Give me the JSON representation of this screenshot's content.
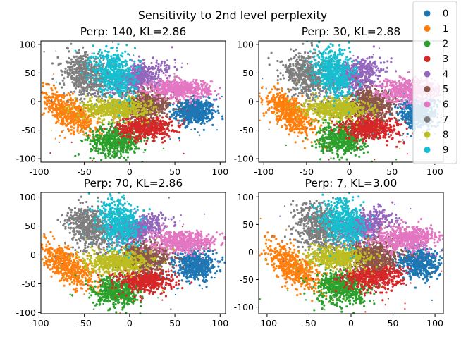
{
  "figure_title": "Sensitivity to 2nd level perplexity",
  "chart_data": [
    {
      "type": "scatter",
      "title": "Perp: 140, KL=2.86",
      "xlabel": "",
      "ylabel": "",
      "xticks": [
        -100,
        -50,
        0,
        50,
        100
      ],
      "yticks": [
        -100,
        -50,
        0,
        50,
        100
      ],
      "xlim": [
        -98,
        106
      ],
      "ylim": [
        -106,
        106
      ],
      "clusters": [
        {
          "label": "0",
          "cx": 72,
          "cy": -18,
          "sx": 11,
          "sy": 11,
          "angle": 0
        },
        {
          "label": "1",
          "cx": -67,
          "cy": -20,
          "sx": 23,
          "sy": 10,
          "angle": -52
        },
        {
          "label": "2",
          "cx": -15,
          "cy": -68,
          "sx": 14,
          "sy": 13,
          "angle": 0
        },
        {
          "label": "3",
          "cx": 17,
          "cy": -45,
          "sx": 15,
          "sy": 10,
          "angle": 0
        },
        {
          "label": "4",
          "cx": 9,
          "cy": 42,
          "sx": 17,
          "sy": 10,
          "angle": 35
        },
        {
          "label": "5",
          "cx": 18,
          "cy": -5,
          "sx": 15,
          "sy": 11,
          "angle": 0
        },
        {
          "label": "6",
          "cx": 55,
          "cy": 22,
          "sx": 17,
          "sy": 8,
          "angle": 0
        },
        {
          "label": "7",
          "cx": -48,
          "cy": 45,
          "sx": 12,
          "sy": 19,
          "angle": 15
        },
        {
          "label": "8",
          "cx": -15,
          "cy": -12,
          "sx": 18,
          "sy": 9,
          "angle": 0
        },
        {
          "label": "9",
          "cx": -17,
          "cy": 50,
          "sx": 11,
          "sy": 21,
          "angle": 10
        }
      ]
    },
    {
      "type": "scatter",
      "title": "Perp: 30, KL=2.88",
      "xlabel": "",
      "ylabel": "",
      "xticks": [
        -100,
        -50,
        0,
        50,
        100
      ],
      "yticks": [
        -100,
        -50,
        0,
        50,
        100
      ],
      "xlim": [
        -106,
        110
      ],
      "ylim": [
        -106,
        106
      ],
      "clusters": [
        {
          "label": "0",
          "cx": 80,
          "cy": -20,
          "sx": 11,
          "sy": 13,
          "angle": 0
        },
        {
          "label": "1",
          "cx": -68,
          "cy": -22,
          "sx": 22,
          "sy": 10,
          "angle": -55
        },
        {
          "label": "2",
          "cx": -9,
          "cy": -65,
          "sx": 13,
          "sy": 14,
          "angle": 0
        },
        {
          "label": "3",
          "cx": 25,
          "cy": -45,
          "sx": 16,
          "sy": 11,
          "angle": 0
        },
        {
          "label": "4",
          "cx": 7,
          "cy": 45,
          "sx": 17,
          "sy": 12,
          "angle": 35
        },
        {
          "label": "5",
          "cx": 25,
          "cy": -5,
          "sx": 15,
          "sy": 12,
          "angle": 0
        },
        {
          "label": "6",
          "cx": 70,
          "cy": 20,
          "sx": 18,
          "sy": 10,
          "angle": 0
        },
        {
          "label": "7",
          "cx": -48,
          "cy": 45,
          "sx": 13,
          "sy": 21,
          "angle": 15
        },
        {
          "label": "8",
          "cx": -15,
          "cy": -12,
          "sx": 18,
          "sy": 9,
          "angle": 0
        },
        {
          "label": "9",
          "cx": -18,
          "cy": 50,
          "sx": 11,
          "sy": 21,
          "angle": 10
        }
      ]
    },
    {
      "type": "scatter",
      "title": "Perp: 70, KL=2.86",
      "xlabel": "",
      "ylabel": "",
      "xticks": [
        -100,
        -50,
        0,
        50,
        100
      ],
      "yticks": [
        -100,
        -50,
        0,
        50,
        100
      ],
      "xlim": [
        -98,
        106
      ],
      "ylim": [
        -102,
        108
      ],
      "clusters": [
        {
          "label": "0",
          "cx": 72,
          "cy": -18,
          "sx": 11,
          "sy": 12,
          "angle": 0
        },
        {
          "label": "1",
          "cx": -67,
          "cy": -20,
          "sx": 23,
          "sy": 10,
          "angle": -52
        },
        {
          "label": "2",
          "cx": -15,
          "cy": -65,
          "sx": 13,
          "sy": 14,
          "angle": 0
        },
        {
          "label": "3",
          "cx": 18,
          "cy": -45,
          "sx": 15,
          "sy": 10,
          "angle": 0
        },
        {
          "label": "4",
          "cx": 8,
          "cy": 45,
          "sx": 17,
          "sy": 10,
          "angle": 35
        },
        {
          "label": "5",
          "cx": 18,
          "cy": -3,
          "sx": 15,
          "sy": 12,
          "angle": 0
        },
        {
          "label": "6",
          "cx": 58,
          "cy": 22,
          "sx": 17,
          "sy": 9,
          "angle": 0
        },
        {
          "label": "7",
          "cx": -45,
          "cy": 48,
          "sx": 12,
          "sy": 19,
          "angle": 15
        },
        {
          "label": "8",
          "cx": -12,
          "cy": -12,
          "sx": 18,
          "sy": 9,
          "angle": 0
        },
        {
          "label": "9",
          "cx": -12,
          "cy": 55,
          "sx": 11,
          "sy": 21,
          "angle": 10
        }
      ]
    },
    {
      "type": "scatter",
      "title": "Perp: 7, KL=3.00",
      "xlabel": "",
      "ylabel": "",
      "xticks": [
        -100,
        -50,
        0,
        50,
        100
      ],
      "yticks": [
        -100,
        -50,
        0,
        50,
        100
      ],
      "xlim": [
        -110,
        110
      ],
      "ylim": [
        -112,
        108
      ],
      "clusters": [
        {
          "label": "0",
          "cx": 80,
          "cy": -18,
          "sx": 12,
          "sy": 15,
          "angle": 0
        },
        {
          "label": "1",
          "cx": -70,
          "cy": -25,
          "sx": 24,
          "sy": 11,
          "angle": -55
        },
        {
          "label": "2",
          "cx": -10,
          "cy": -65,
          "sx": 16,
          "sy": 16,
          "angle": 0
        },
        {
          "label": "3",
          "cx": 25,
          "cy": -45,
          "sx": 17,
          "sy": 12,
          "angle": 0
        },
        {
          "label": "4",
          "cx": 15,
          "cy": 45,
          "sx": 18,
          "sy": 12,
          "angle": 35
        },
        {
          "label": "5",
          "cx": 25,
          "cy": -5,
          "sx": 16,
          "sy": 13,
          "angle": 0
        },
        {
          "label": "6",
          "cx": 65,
          "cy": 25,
          "sx": 18,
          "sy": 11,
          "angle": 0
        },
        {
          "label": "7",
          "cx": -40,
          "cy": 45,
          "sx": 14,
          "sy": 22,
          "angle": 15
        },
        {
          "label": "8",
          "cx": -15,
          "cy": -10,
          "sx": 18,
          "sy": 10,
          "angle": 0
        },
        {
          "label": "9",
          "cx": -10,
          "cy": 55,
          "sx": 12,
          "sy": 22,
          "angle": 10
        }
      ]
    }
  ],
  "legend": {
    "placement": "top-right",
    "entries": [
      {
        "label": "0",
        "color": "#1f77b4"
      },
      {
        "label": "1",
        "color": "#ff7f0e"
      },
      {
        "label": "2",
        "color": "#2ca02c"
      },
      {
        "label": "3",
        "color": "#d62728"
      },
      {
        "label": "4",
        "color": "#9467bd"
      },
      {
        "label": "5",
        "color": "#8c564b"
      },
      {
        "label": "6",
        "color": "#e377c2"
      },
      {
        "label": "7",
        "color": "#7f7f7f"
      },
      {
        "label": "8",
        "color": "#bcbd22"
      },
      {
        "label": "9",
        "color": "#17becf"
      }
    ]
  }
}
